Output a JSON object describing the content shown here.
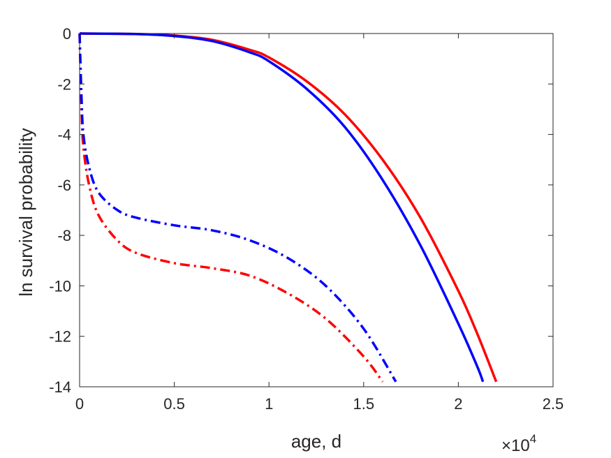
{
  "chart_data": {
    "type": "line",
    "xlabel": "age, d",
    "ylabel": "ln survival probability",
    "x_exponent_label": "×10",
    "x_exponent_power": "4",
    "xlim": [
      0,
      2.5
    ],
    "ylim": [
      -14,
      0
    ],
    "x_scale_note": "x values in units of 10^4 days",
    "x_ticks": [
      0,
      0.5,
      1,
      1.5,
      2,
      2.5
    ],
    "x_tick_labels": [
      "0",
      "0.5",
      "1",
      "1.5",
      "2",
      "2.5"
    ],
    "y_ticks": [
      0,
      -2,
      -4,
      -6,
      -8,
      -10,
      -12,
      -14
    ],
    "y_tick_labels": [
      "0",
      "-2",
      "-4",
      "-6",
      "-8",
      "-10",
      "-12",
      "-14"
    ],
    "grid": false,
    "series": [
      {
        "color": "#ff0000",
        "style": "solid",
        "x": [
          0.0,
          0.3,
          0.5,
          0.7,
          0.9,
          1.0,
          1.2,
          1.4,
          1.6,
          1.8,
          2.0,
          2.1,
          2.2
        ],
        "y": [
          0.0,
          -0.02,
          -0.08,
          -0.25,
          -0.65,
          -0.95,
          -1.9,
          -3.2,
          -5.0,
          -7.3,
          -10.2,
          -11.9,
          -13.8
        ]
      },
      {
        "color": "#0000ff",
        "style": "solid",
        "x": [
          0.0,
          0.3,
          0.5,
          0.7,
          0.9,
          1.0,
          1.2,
          1.4,
          1.6,
          1.8,
          2.0,
          2.1,
          2.13
        ],
        "y": [
          0.0,
          -0.02,
          -0.1,
          -0.3,
          -0.75,
          -1.1,
          -2.2,
          -3.7,
          -5.8,
          -8.4,
          -11.5,
          -13.2,
          -13.8
        ]
      },
      {
        "color": "#ff0000",
        "style": "dashdot",
        "x": [
          0.0,
          0.01,
          0.02,
          0.05,
          0.1,
          0.2,
          0.3,
          0.5,
          0.7,
          0.9,
          1.1,
          1.3,
          1.5,
          1.6
        ],
        "y": [
          0.0,
          -3.0,
          -4.5,
          -6.0,
          -7.2,
          -8.2,
          -8.7,
          -9.1,
          -9.3,
          -9.6,
          -10.3,
          -11.3,
          -12.8,
          -13.8
        ]
      },
      {
        "color": "#0000ff",
        "style": "dashdot",
        "x": [
          0.0,
          0.01,
          0.02,
          0.05,
          0.1,
          0.2,
          0.3,
          0.5,
          0.7,
          0.9,
          1.1,
          1.3,
          1.5,
          1.67
        ],
        "y": [
          0.0,
          -2.5,
          -4.0,
          -5.3,
          -6.3,
          -7.0,
          -7.3,
          -7.6,
          -7.8,
          -8.2,
          -8.9,
          -10.0,
          -11.7,
          -13.8
        ]
      }
    ]
  }
}
